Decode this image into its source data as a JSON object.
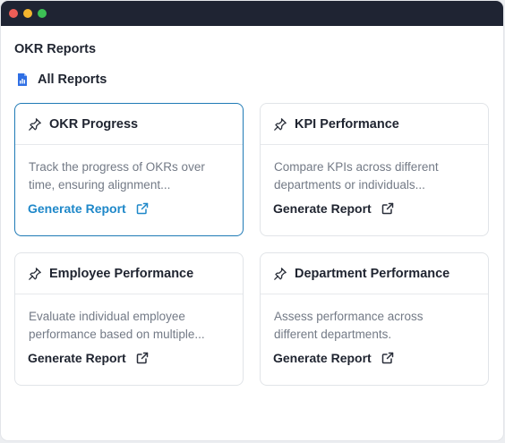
{
  "page": {
    "title": "OKR Reports",
    "breadcrumb": "All Reports"
  },
  "colors": {
    "accent": "#1f88c9",
    "active_border": "#1f7ab6",
    "titlebar": "#1f2433",
    "doc_icon": "#2f6fe4"
  },
  "cards": [
    {
      "title": "OKR Progress",
      "description_line1": "Track the progress of OKRs over",
      "description_line2": "time, ensuring alignment...",
      "action": "Generate Report",
      "icon": "pin-icon",
      "active": true
    },
    {
      "title": "KPI Performance",
      "description_line1": "Compare KPIs across different",
      "description_line2": "departments or individuals...",
      "action": "Generate Report",
      "icon": "pin-icon",
      "active": false
    },
    {
      "title": "Employee Performance",
      "description_line1": "Evaluate individual employee",
      "description_line2": "performance based on multiple...",
      "action": "Generate Report",
      "icon": "pin-icon",
      "active": false
    },
    {
      "title": "Department Performance",
      "description_line1": "Assess performance across",
      "description_line2": "different departments.",
      "action": "Generate Report",
      "icon": "pin-icon",
      "active": false
    }
  ]
}
